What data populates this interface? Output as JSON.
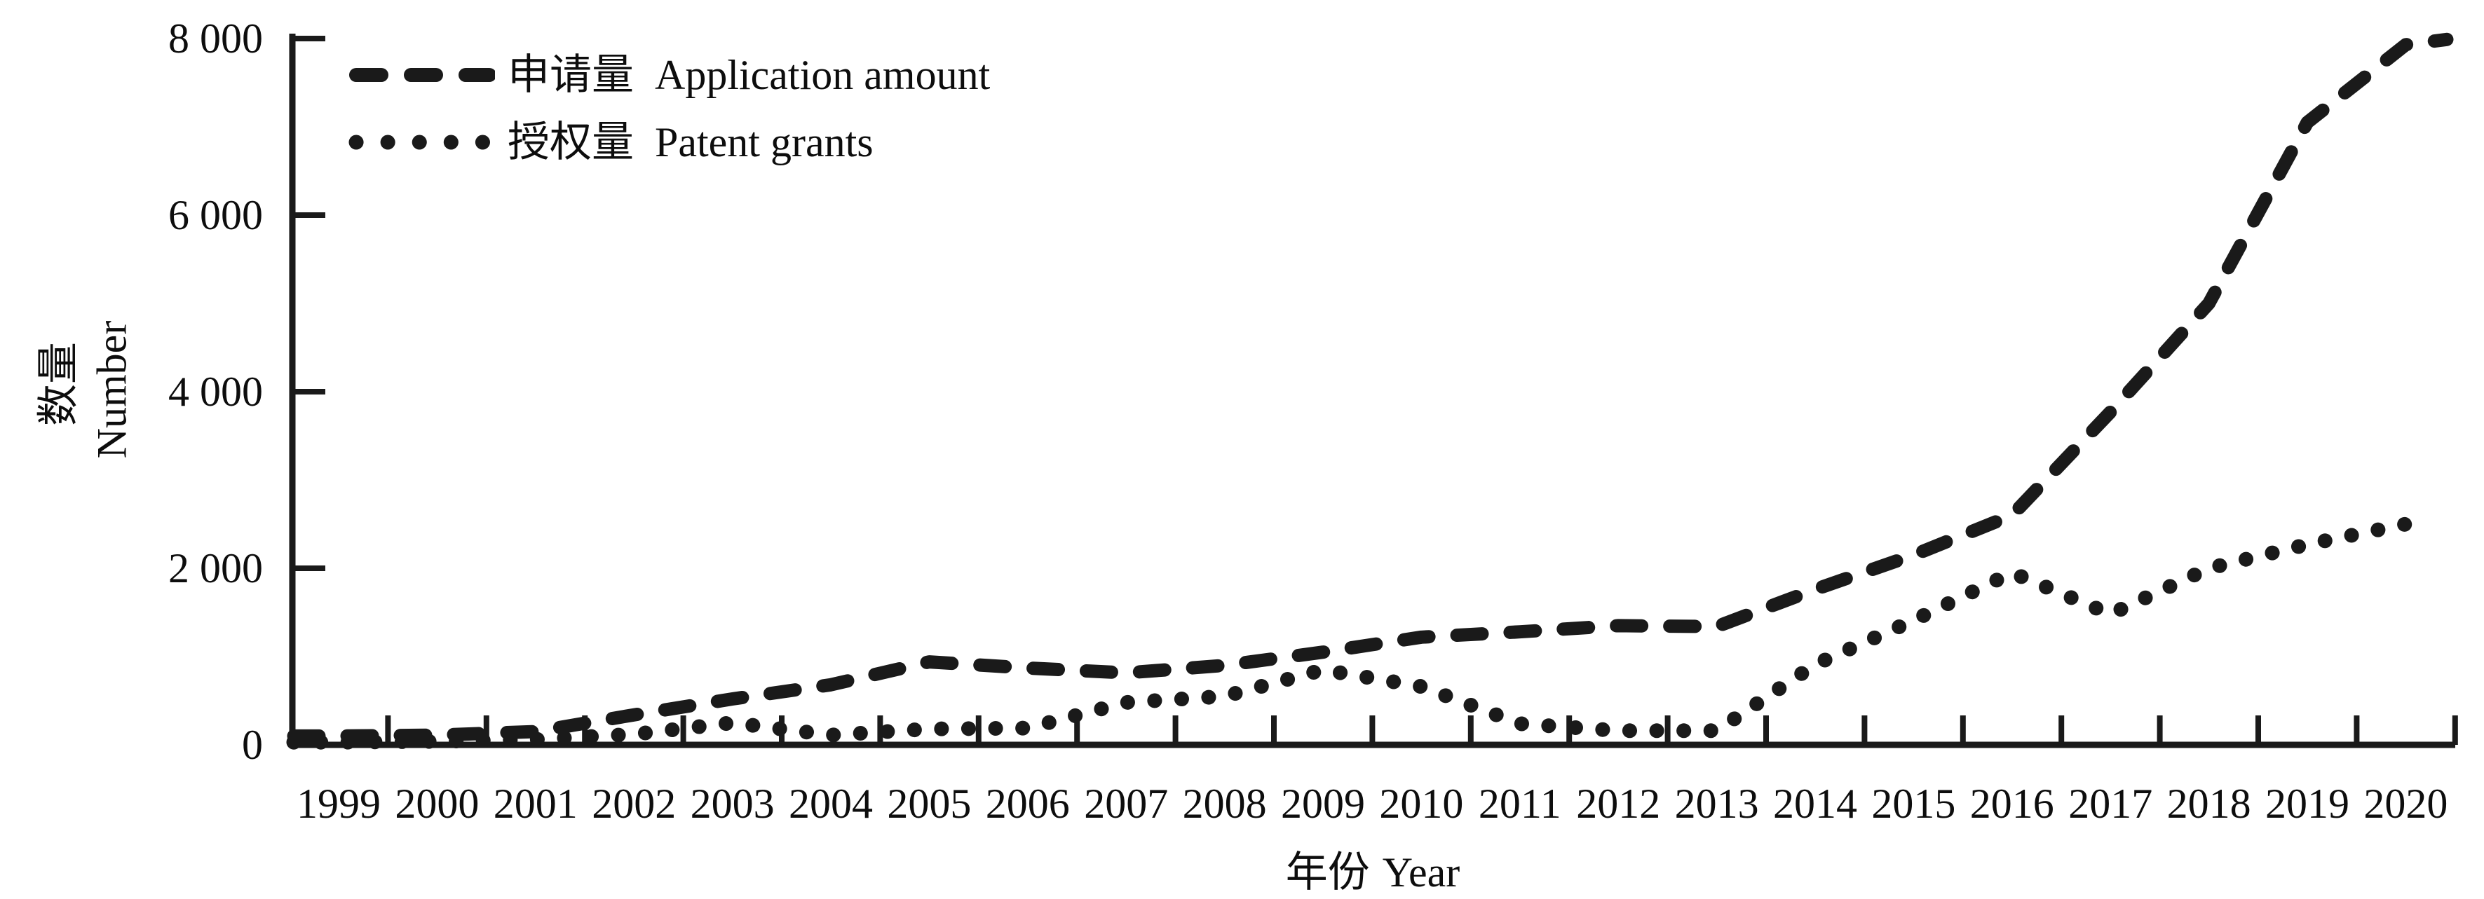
{
  "figure": {
    "background": "#ffffff",
    "ink": "#1a1a1a"
  },
  "axes": {
    "y_title_zh": "数量",
    "y_title_en": "Number",
    "x_title_zh": "年份",
    "x_title_en": "Year"
  },
  "chart_data": {
    "type": "line",
    "title": "",
    "x": [
      "1999",
      "2000",
      "2001",
      "2002",
      "2003",
      "2004",
      "2005",
      "2006",
      "2007",
      "2008",
      "2009",
      "2010",
      "2011",
      "2012",
      "2013",
      "2014",
      "2015",
      "2016",
      "2017",
      "2018",
      "2019",
      "2020"
    ],
    "series": [
      {
        "name_zh": "申请量",
        "name_en": "Application amount",
        "line_style": "dashed",
        "color": "#1a1a1a",
        "values": [
          100,
          110,
          150,
          340,
          520,
          680,
          940,
          870,
          815,
          900,
          1050,
          1220,
          1280,
          1350,
          1340,
          1760,
          2150,
          2600,
          3770,
          5000,
          7050,
          7930
        ]
      },
      {
        "name_zh": "授权量",
        "name_en": "Patent grants",
        "line_style": "dotted",
        "color": "#1a1a1a",
        "values": [
          30,
          40,
          60,
          120,
          250,
          110,
          180,
          190,
          480,
          550,
          850,
          660,
          240,
          160,
          160,
          910,
          1410,
          1950,
          1480,
          2000,
          2270,
          2500
        ]
      }
    ],
    "xlabel": "年份 Year",
    "ylabel": "数量 Number",
    "ylim": [
      0,
      8000
    ],
    "yticks": [
      {
        "value": 0,
        "label": "0"
      },
      {
        "value": 2000,
        "label": "2 000"
      },
      {
        "value": 4000,
        "label": "4 000"
      },
      {
        "value": 6000,
        "label": "6 000"
      },
      {
        "value": 8000,
        "label": "8 000"
      }
    ],
    "xlim_years": [
      1999,
      2020
    ],
    "legend_position": "top-left",
    "grid": false
  }
}
